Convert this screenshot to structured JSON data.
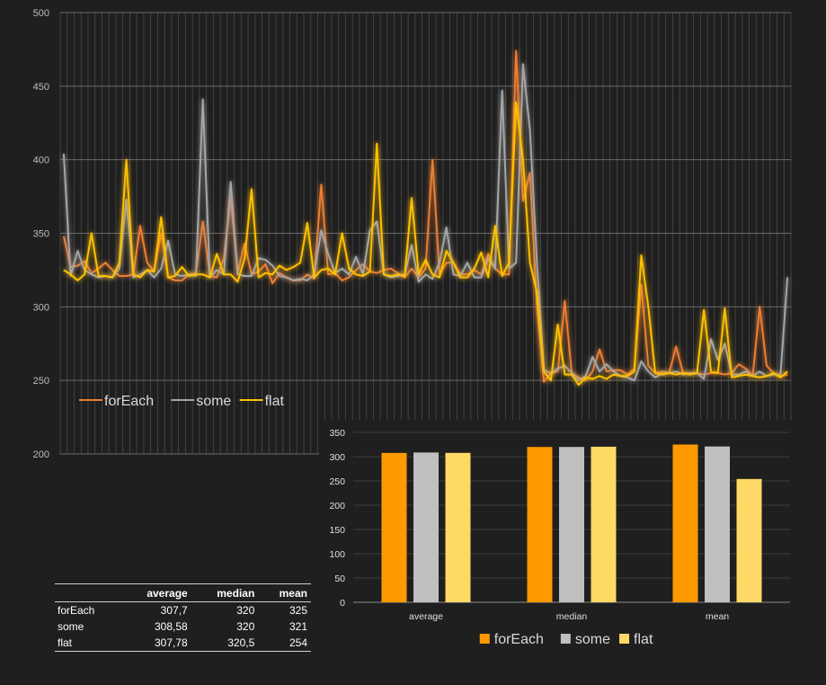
{
  "chart_data": [
    {
      "type": "line",
      "title": "",
      "xlabel": "",
      "ylabel": "",
      "ylim": [
        200,
        500
      ],
      "yticks": [
        200,
        250,
        300,
        350,
        400,
        450,
        500
      ],
      "grid": true,
      "legend": "bottom-left",
      "series": [
        {
          "name": "forEach",
          "color": "#ed7d31",
          "values": [
            348,
            327,
            328,
            331,
            323,
            326,
            330,
            325,
            321,
            321,
            322,
            355,
            330,
            324,
            350,
            320,
            318,
            318,
            322,
            323,
            358,
            321,
            320,
            333,
            374,
            323,
            343,
            322,
            324,
            329,
            316,
            323,
            320,
            318,
            318,
            322,
            319,
            383,
            322,
            323,
            318,
            320,
            325,
            329,
            324,
            323,
            325,
            326,
            323,
            320,
            326,
            320,
            326,
            400,
            322,
            330,
            330,
            322,
            322,
            325,
            322,
            336,
            326,
            322,
            322,
            474,
            372,
            391,
            300,
            249,
            255,
            256,
            304,
            255,
            252,
            250,
            256,
            271,
            256,
            257,
            257,
            254,
            258,
            315,
            260,
            255,
            256,
            255,
            273,
            255,
            255,
            255,
            254,
            255,
            255,
            254,
            255,
            261,
            258,
            253,
            300,
            260,
            255,
            253,
            254
          ]
        },
        {
          "name": "some",
          "color": "#a5a5a5",
          "values": [
            404,
            321,
            338,
            325,
            322,
            320,
            321,
            320,
            326,
            373,
            320,
            322,
            325,
            320,
            326,
            345,
            322,
            321,
            322,
            321,
            441,
            320,
            325,
            322,
            385,
            322,
            321,
            321,
            333,
            332,
            328,
            321,
            320,
            318,
            319,
            318,
            322,
            352,
            336,
            323,
            326,
            322,
            334,
            322,
            352,
            358,
            322,
            320,
            321,
            322,
            342,
            317,
            322,
            319,
            330,
            354,
            322,
            321,
            330,
            320,
            320,
            333,
            326,
            447,
            326,
            330,
            465,
            420,
            330,
            257,
            255,
            258,
            260,
            255,
            250,
            253,
            266,
            256,
            261,
            256,
            253,
            252,
            250,
            263,
            256,
            252,
            255,
            255,
            256,
            254,
            255,
            255,
            251,
            278,
            264,
            275,
            254,
            254,
            256,
            253,
            256,
            253,
            254,
            254,
            320
          ]
        },
        {
          "name": "flat",
          "color": "#ffc000",
          "values": [
            325,
            322,
            318,
            322,
            350,
            321,
            321,
            320,
            330,
            400,
            322,
            320,
            325,
            324,
            361,
            320,
            321,
            327,
            321,
            322,
            322,
            320,
            336,
            322,
            322,
            317,
            333,
            380,
            320,
            323,
            322,
            328,
            325,
            327,
            330,
            357,
            320,
            325,
            326,
            322,
            350,
            326,
            322,
            321,
            324,
            411,
            322,
            321,
            322,
            321,
            374,
            322,
            332,
            322,
            320,
            338,
            330,
            320,
            320,
            326,
            337,
            320,
            355,
            321,
            330,
            439,
            400,
            330,
            310,
            256,
            250,
            288,
            254,
            254,
            247,
            252,
            251,
            253,
            251,
            254,
            253,
            253,
            256,
            335,
            300,
            255,
            254,
            255,
            254,
            255,
            254,
            255,
            298,
            256,
            255,
            299,
            252,
            253,
            254,
            253,
            252,
            253,
            255,
            252,
            256
          ]
        }
      ]
    },
    {
      "type": "bar",
      "title": "",
      "xlabel": "",
      "ylabel": "",
      "categories": [
        "average",
        "median",
        "mean"
      ],
      "ylim": [
        0,
        350
      ],
      "yticks": [
        0,
        50,
        100,
        150,
        200,
        250,
        300,
        350
      ],
      "grid": true,
      "legend": "bottom-center",
      "series": [
        {
          "name": "forEach",
          "color": "#ff9900",
          "values": [
            307.7,
            320,
            325
          ]
        },
        {
          "name": "some",
          "color": "#bfbfbf",
          "values": [
            308.58,
            320,
            321
          ]
        },
        {
          "name": "flat",
          "color": "#ffd966",
          "values": [
            307.78,
            320.5,
            254
          ]
        }
      ]
    }
  ],
  "table": {
    "headers": [
      "",
      "average",
      "median",
      "mean"
    ],
    "rows": [
      {
        "name": "forEach",
        "average": "307,7",
        "median": "320",
        "mean": "325"
      },
      {
        "name": "some",
        "average": "308,58",
        "median": "320",
        "mean": "321"
      },
      {
        "name": "flat",
        "average": "307,78",
        "median": "320,5",
        "mean": "254"
      }
    ]
  }
}
